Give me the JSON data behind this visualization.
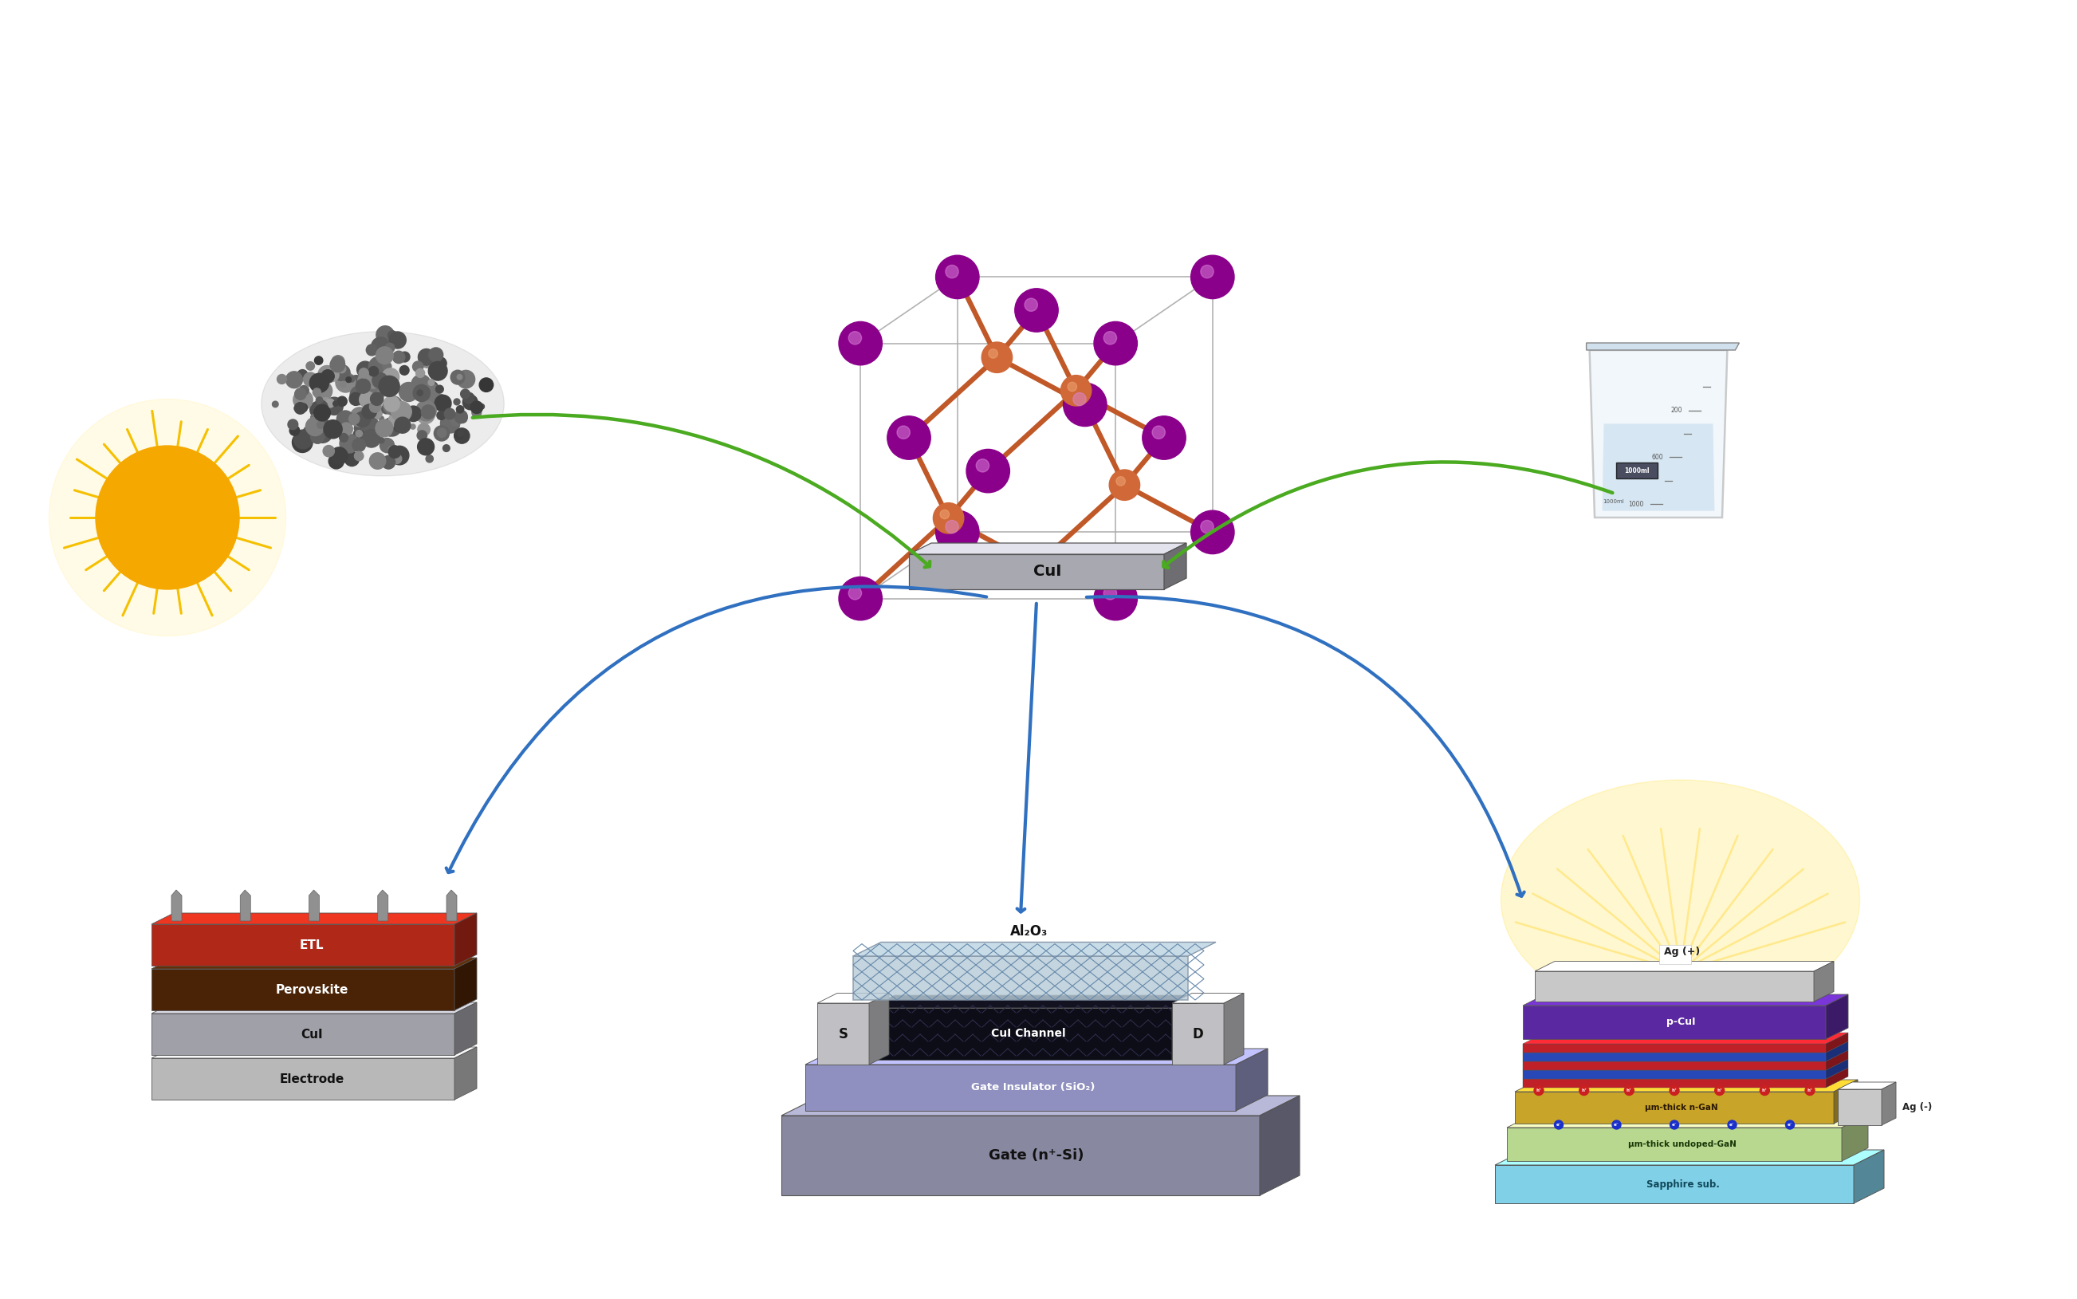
{
  "bg_color": "#ffffff",
  "arrow_color_green": "#4aaa20",
  "arrow_color_blue": "#3070c0",
  "crystal_cu_color": "#d06838",
  "crystal_i_color": "#8b008b",
  "crystal_bond_color": "#c05828",
  "crystal_frame_color": "#aaaaaa",
  "sun_color": "#f5a800",
  "sun_ray_color": "#f5c000",
  "layer_labels": {
    "etl": "ETL",
    "perovskite": "Perovskite",
    "cul": "CuI",
    "electrode": "Electrode"
  },
  "transistor_labels": {
    "al2o3": "Al₂O₃",
    "channel": "CuI Channel",
    "insulator": "Gate Insulator (SiO₂)",
    "gate": "Gate (n⁺-Si)",
    "s": "S",
    "d": "D"
  },
  "led_labels": {
    "ag_plus": "Ag (+)",
    "p_cul": "p-CuI",
    "ag_minus": "Ag (-)",
    "n_gan": "μm-thick n-GaN",
    "undoped": "μm-thick undoped-GaN",
    "sapphire": "Sapphire sub."
  }
}
